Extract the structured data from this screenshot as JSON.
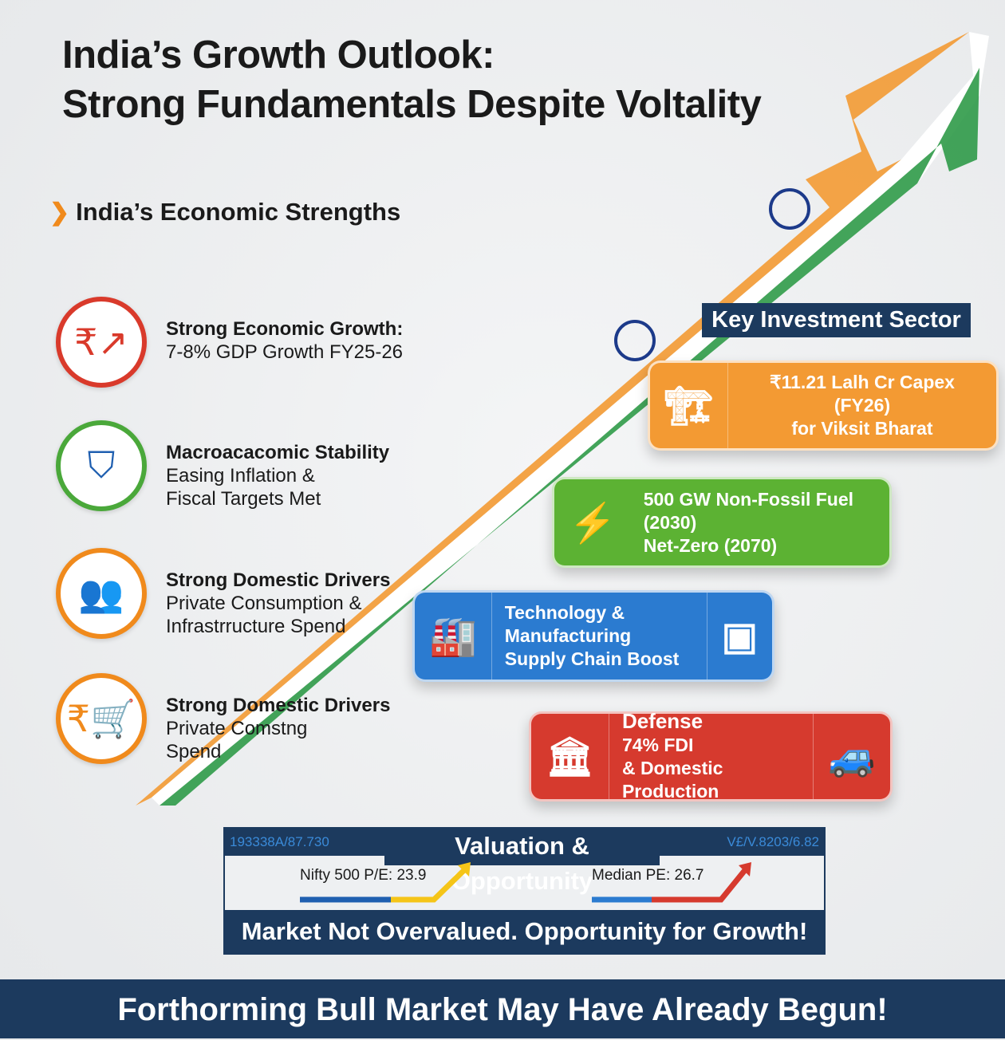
{
  "title": {
    "line1": "India’s Growth Outlook:",
    "line2": "Strong Fundamentals Despite Voltality"
  },
  "section_heading": "India’s Economic Strengths",
  "strengths": [
    {
      "title": "Strong Economic Growth:",
      "lines": [
        "7-8% GDP Growth FY25-26"
      ],
      "icon": "rupee-growth-chart-icon",
      "color": "#d93a2b"
    },
    {
      "title": "Macroacacomic Stability",
      "lines": [
        "Easing Inflation &",
        "Fiscal Targets Met"
      ],
      "icon": "shield-chart-icon",
      "color": "#4aa83a"
    },
    {
      "title": "Strong Domestic Drivers",
      "lines": [
        "Private Consumption &",
        "Infrastrruct​ure Spend"
      ],
      "icon": "people-group-icon",
      "color": "#f08a1c"
    },
    {
      "title": "Strong Domestic Drivers",
      "lines": [
        "Private Comstng",
        "Spend"
      ],
      "icon": "rupee-cart-icon",
      "color": "#f08a1c"
    }
  ],
  "key_sector_label": "Key Investment Sector",
  "sectors": [
    {
      "lines": [
        "₹11.21 Lalh Cr Capex (FY26)",
        "for Viksit Bharat"
      ],
      "icon": "crane-icon",
      "color": "#f39a33"
    },
    {
      "lines": [
        "500 GW Non-Fossil Fuel",
        "(2030)",
        "Net-Zero (2070)"
      ],
      "icon": "wind-solar-icon",
      "color": "#5cb233"
    },
    {
      "lines": [
        "Technology &",
        "Manufacturing",
        "Supply Chain Boost"
      ],
      "icon": "factory-icon",
      "color": "#2b7bd0"
    },
    {
      "lines": [
        "Defense",
        "74% FDI",
        "& Domestic Production"
      ],
      "icon": "defense-tank-icon",
      "color": "#d63a2e"
    }
  ],
  "valuation": {
    "title": "Valuation & Opportunity",
    "ticker_left": "193338A/87.730",
    "ticker_right": "V£/V.8203/6.82",
    "metrics": [
      {
        "label": "Nifty 500 P/E: 23.9",
        "arrow_color": "#f5c518"
      },
      {
        "label": "Median PE: 26.7",
        "arrow_color": "#d63a2e"
      }
    ],
    "footer": "Market Not Overvalued. Opportunity for Growth!"
  },
  "banner": "Forthorming Bull Market May Have Already Begun!"
}
